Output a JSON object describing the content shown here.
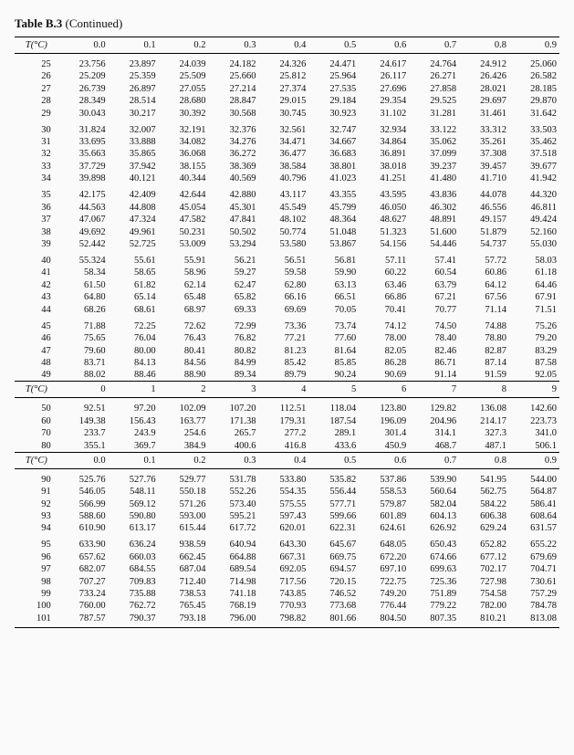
{
  "title_bold": "Table B.3",
  "title_rest": "(Continued)",
  "sections": [
    {
      "header_label": "T(°C)",
      "headers": [
        "0.0",
        "0.1",
        "0.2",
        "0.3",
        "0.4",
        "0.5",
        "0.6",
        "0.7",
        "0.8",
        "0.9"
      ],
      "blocks": [
        {
          "rows": [
            {
              "label": "25",
              "cells": [
                "23.756",
                "23.897",
                "24.039",
                "24.182",
                "24.326",
                "24.471",
                "24.617",
                "24.764",
                "24.912",
                "25.060"
              ]
            },
            {
              "label": "26",
              "cells": [
                "25.209",
                "25.359",
                "25.509",
                "25.660",
                "25.812",
                "25.964",
                "26.117",
                "26.271",
                "26.426",
                "26.582"
              ]
            },
            {
              "label": "27",
              "cells": [
                "26.739",
                "26.897",
                "27.055",
                "27.214",
                "27.374",
                "27.535",
                "27.696",
                "27.858",
                "28.021",
                "28.185"
              ]
            },
            {
              "label": "28",
              "cells": [
                "28.349",
                "28.514",
                "28.680",
                "28.847",
                "29.015",
                "29.184",
                "29.354",
                "29.525",
                "29.697",
                "29.870"
              ]
            },
            {
              "label": "29",
              "cells": [
                "30.043",
                "30.217",
                "30.392",
                "30.568",
                "30.745",
                "30.923",
                "31.102",
                "31.281",
                "31.461",
                "31.642"
              ]
            }
          ]
        },
        {
          "rows": [
            {
              "label": "30",
              "cells": [
                "31.824",
                "32.007",
                "32.191",
                "32.376",
                "32.561",
                "32.747",
                "32.934",
                "33.122",
                "33.312",
                "33.503"
              ]
            },
            {
              "label": "31",
              "cells": [
                "33.695",
                "33.888",
                "34.082",
                "34.276",
                "34.471",
                "34.667",
                "34.864",
                "35.062",
                "35.261",
                "35.462"
              ]
            },
            {
              "label": "32",
              "cells": [
                "35.663",
                "35.865",
                "36.068",
                "36.272",
                "36.477",
                "36.683",
                "36.891",
                "37.099",
                "37.308",
                "37.518"
              ]
            },
            {
              "label": "33",
              "cells": [
                "37.729",
                "37.942",
                "38.155",
                "38.369",
                "38.584",
                "38.801",
                "38.018",
                "39.237",
                "39.457",
                "39.677"
              ]
            },
            {
              "label": "34",
              "cells": [
                "39.898",
                "40.121",
                "40.344",
                "40.569",
                "40.796",
                "41.023",
                "41.251",
                "41.480",
                "41.710",
                "41.942"
              ]
            }
          ]
        },
        {
          "rows": [
            {
              "label": "35",
              "cells": [
                "42.175",
                "42.409",
                "42.644",
                "42.880",
                "43.117",
                "43.355",
                "43.595",
                "43.836",
                "44.078",
                "44.320"
              ]
            },
            {
              "label": "36",
              "cells": [
                "44.563",
                "44.808",
                "45.054",
                "45.301",
                "45.549",
                "45.799",
                "46.050",
                "46.302",
                "46.556",
                "46.811"
              ]
            },
            {
              "label": "37",
              "cells": [
                "47.067",
                "47.324",
                "47.582",
                "47.841",
                "48.102",
                "48.364",
                "48.627",
                "48.891",
                "49.157",
                "49.424"
              ]
            },
            {
              "label": "38",
              "cells": [
                "49.692",
                "49.961",
                "50.231",
                "50.502",
                "50.774",
                "51.048",
                "51.323",
                "51.600",
                "51.879",
                "52.160"
              ]
            },
            {
              "label": "39",
              "cells": [
                "52.442",
                "52.725",
                "53.009",
                "53.294",
                "53.580",
                "53.867",
                "54.156",
                "54.446",
                "54.737",
                "55.030"
              ]
            }
          ]
        },
        {
          "rows": [
            {
              "label": "40",
              "cells": [
                "55.324",
                "55.61",
                "55.91",
                "56.21",
                "56.51",
                "56.81",
                "57.11",
                "57.41",
                "57.72",
                "58.03"
              ]
            },
            {
              "label": "41",
              "cells": [
                "58.34",
                "58.65",
                "58.96",
                "59.27",
                "59.58",
                "59.90",
                "60.22",
                "60.54",
                "60.86",
                "61.18"
              ]
            },
            {
              "label": "42",
              "cells": [
                "61.50",
                "61.82",
                "62.14",
                "62.47",
                "62.80",
                "63.13",
                "63.46",
                "63.79",
                "64.12",
                "64.46"
              ]
            },
            {
              "label": "43",
              "cells": [
                "64.80",
                "65.14",
                "65.48",
                "65.82",
                "66.16",
                "66.51",
                "66.86",
                "67.21",
                "67.56",
                "67.91"
              ]
            },
            {
              "label": "44",
              "cells": [
                "68.26",
                "68.61",
                "68.97",
                "69.33",
                "69.69",
                "70.05",
                "70.41",
                "70.77",
                "71.14",
                "71.51"
              ]
            }
          ]
        },
        {
          "rows": [
            {
              "label": "45",
              "cells": [
                "71.88",
                "72.25",
                "72.62",
                "72.99",
                "73.36",
                "73.74",
                "74.12",
                "74.50",
                "74.88",
                "75.26"
              ]
            },
            {
              "label": "46",
              "cells": [
                "75.65",
                "76.04",
                "76.43",
                "76.82",
                "77.21",
                "77.60",
                "78.00",
                "78.40",
                "78.80",
                "79.20"
              ]
            },
            {
              "label": "47",
              "cells": [
                "79.60",
                "80.00",
                "80.41",
                "80.82",
                "81.23",
                "81.64",
                "82.05",
                "82.46",
                "82.87",
                "83.29"
              ]
            },
            {
              "label": "48",
              "cells": [
                "83.71",
                "84.13",
                "84.56",
                "84.99",
                "85.42",
                "85.85",
                "86.28",
                "86.71",
                "87.14",
                "87.58"
              ]
            },
            {
              "label": "49",
              "cells": [
                "88.02",
                "88.46",
                "88.90",
                "89.34",
                "89.79",
                "90.24",
                "90.69",
                "91.14",
                "91.59",
                "92.05"
              ]
            }
          ]
        }
      ]
    },
    {
      "header_label": "T(°C)",
      "headers": [
        "0",
        "1",
        "2",
        "3",
        "4",
        "5",
        "6",
        "7",
        "8",
        "9"
      ],
      "blocks": [
        {
          "rows": [
            {
              "label": "50",
              "cells": [
                "92.51",
                "97.20",
                "102.09",
                "107.20",
                "112.51",
                "118.04",
                "123.80",
                "129.82",
                "136.08",
                "142.60"
              ]
            },
            {
              "label": "60",
              "cells": [
                "149.38",
                "156.43",
                "163.77",
                "171.38",
                "179.31",
                "187.54",
                "196.09",
                "204.96",
                "214.17",
                "223.73"
              ]
            },
            {
              "label": "70",
              "cells": [
                "233.7",
                "243.9",
                "254.6",
                "265.7",
                "277.2",
                "289.1",
                "301.4",
                "314.1",
                "327.3",
                "341.0"
              ]
            },
            {
              "label": "80",
              "cells": [
                "355.1",
                "369.7",
                "384.9",
                "400.6",
                "416.8",
                "433.6",
                "450.9",
                "468.7",
                "487.1",
                "506.1"
              ]
            }
          ]
        }
      ]
    },
    {
      "header_label": "T(°C)",
      "headers": [
        "0.0",
        "0.1",
        "0.2",
        "0.3",
        "0.4",
        "0.5",
        "0.6",
        "0.7",
        "0.8",
        "0.9"
      ],
      "blocks": [
        {
          "rows": [
            {
              "label": "90",
              "cells": [
                "525.76",
                "527.76",
                "529.77",
                "531.78",
                "533.80",
                "535.82",
                "537.86",
                "539.90",
                "541.95",
                "544.00"
              ]
            },
            {
              "label": "91",
              "cells": [
                "546.05",
                "548.11",
                "550.18",
                "552.26",
                "554.35",
                "556.44",
                "558.53",
                "560.64",
                "562.75",
                "564.87"
              ]
            },
            {
              "label": "92",
              "cells": [
                "566.99",
                "569.12",
                "571.26",
                "573.40",
                "575.55",
                "577.71",
                "579.87",
                "582.04",
                "584.22",
                "586.41"
              ]
            },
            {
              "label": "93",
              "cells": [
                "588.60",
                "590.80",
                "593.00",
                "595.21",
                "597.43",
                "599.66",
                "601.89",
                "604.13",
                "606.38",
                "608.64"
              ]
            },
            {
              "label": "94",
              "cells": [
                "610.90",
                "613.17",
                "615.44",
                "617.72",
                "620.01",
                "622.31",
                "624.61",
                "626.92",
                "629.24",
                "631.57"
              ]
            }
          ]
        },
        {
          "rows": [
            {
              "label": "95",
              "cells": [
                "633.90",
                "636.24",
                "938.59",
                "640.94",
                "643.30",
                "645.67",
                "648.05",
                "650.43",
                "652.82",
                "655.22"
              ]
            },
            {
              "label": "96",
              "cells": [
                "657.62",
                "660.03",
                "662.45",
                "664.88",
                "667.31",
                "669.75",
                "672.20",
                "674.66",
                "677.12",
                "679.69"
              ]
            },
            {
              "label": "97",
              "cells": [
                "682.07",
                "684.55",
                "687.04",
                "689.54",
                "692.05",
                "694.57",
                "697.10",
                "699.63",
                "702.17",
                "704.71"
              ]
            },
            {
              "label": "98",
              "cells": [
                "707.27",
                "709.83",
                "712.40",
                "714.98",
                "717.56",
                "720.15",
                "722.75",
                "725.36",
                "727.98",
                "730.61"
              ]
            },
            {
              "label": "99",
              "cells": [
                "733.24",
                "735.88",
                "738.53",
                "741.18",
                "743.85",
                "746.52",
                "749.20",
                "751.89",
                "754.58",
                "757.29"
              ]
            },
            {
              "label": "100",
              "cells": [
                "760.00",
                "762.72",
                "765.45",
                "768.19",
                "770.93",
                "773.68",
                "776.44",
                "779.22",
                "782.00",
                "784.78"
              ]
            },
            {
              "label": "101",
              "cells": [
                "787.57",
                "790.37",
                "793.18",
                "796.00",
                "798.82",
                "801.66",
                "804.50",
                "807.35",
                "810.21",
                "813.08"
              ]
            }
          ]
        }
      ]
    }
  ]
}
